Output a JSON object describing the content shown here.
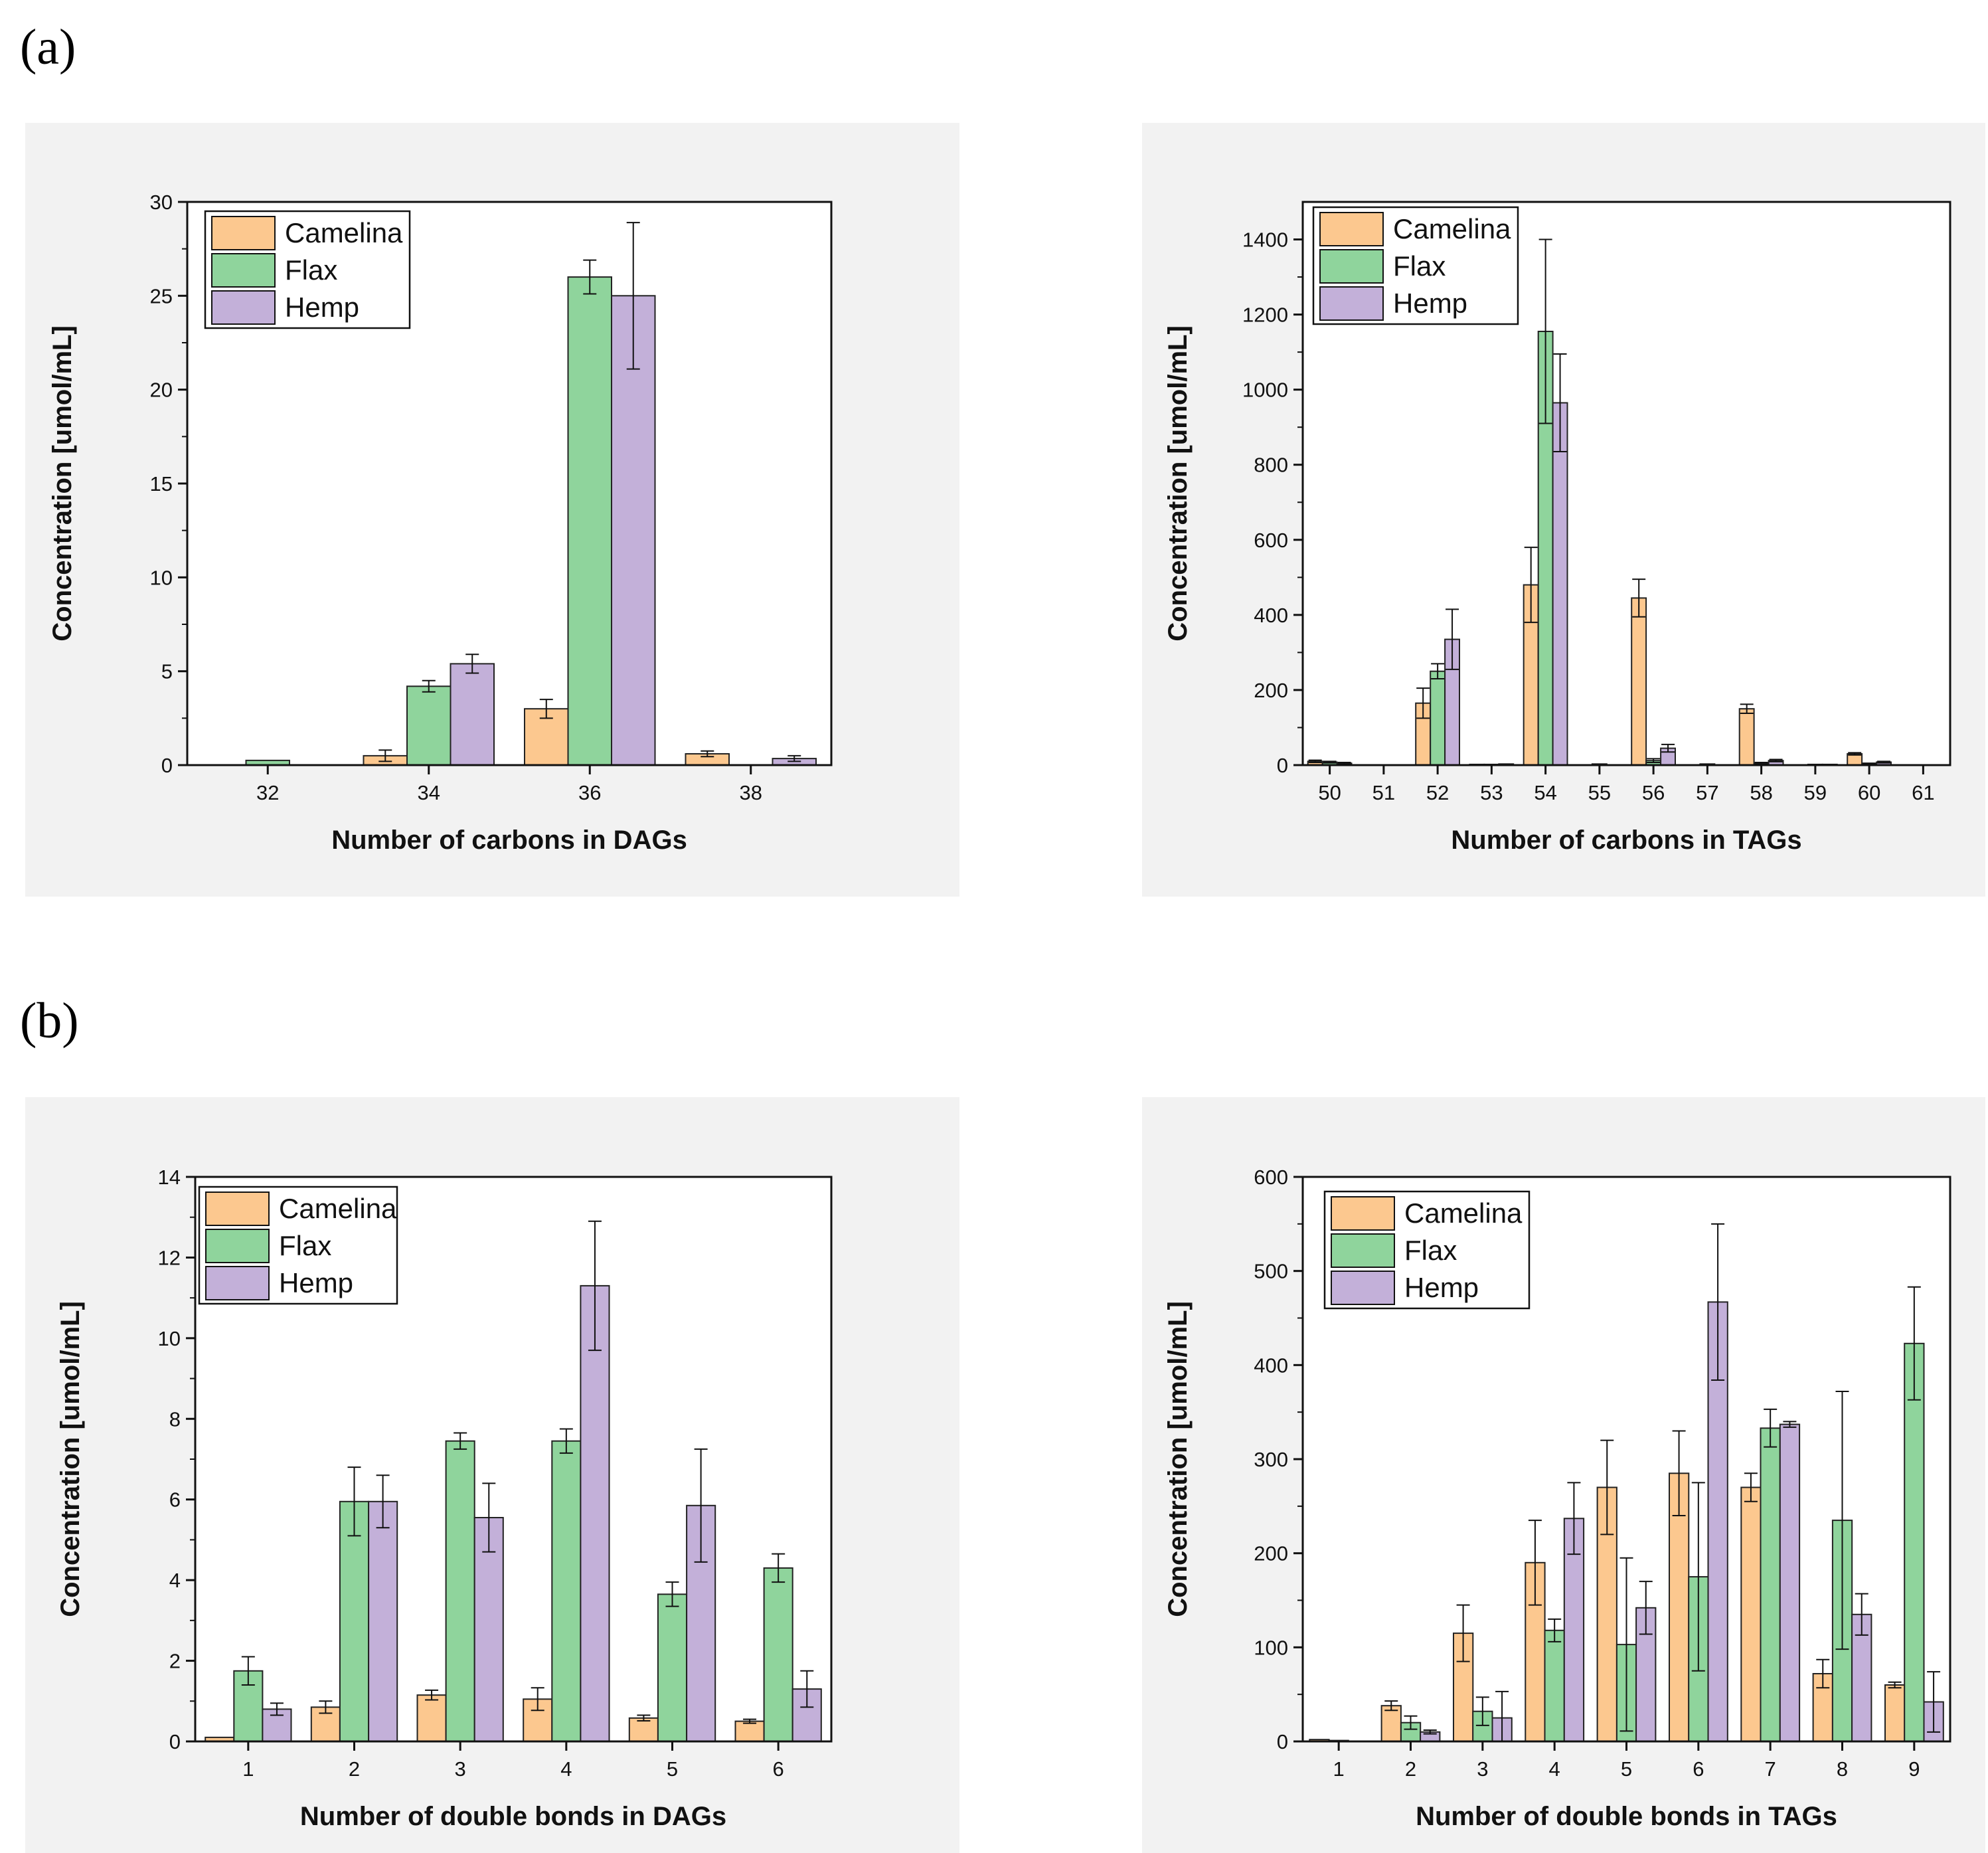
{
  "figure": {
    "label_a": "(a)",
    "label_b": "(b)"
  },
  "colors": {
    "Camelina": "#fcc88f",
    "Flax": "#8fd49c",
    "Hemp": "#c3b0d9",
    "stroke": "#222222",
    "shade": "#f2f2f2"
  },
  "chart_data": [
    {
      "id": "a1",
      "type": "bar",
      "title": "",
      "xlabel": "Number of carbons in DAGs",
      "ylabel": "Concentration [umol/mL]",
      "categories": [
        "32",
        "34",
        "36",
        "38"
      ],
      "ylim": [
        0,
        30
      ],
      "yticks": [
        0,
        5,
        10,
        15,
        20,
        25,
        30
      ],
      "legend": "top-left",
      "series": [
        {
          "name": "Camelina",
          "values": [
            0,
            0.5,
            3.0,
            0.6
          ],
          "errors": [
            0,
            0.3,
            0.5,
            0.15
          ]
        },
        {
          "name": "Flax",
          "values": [
            0.25,
            4.2,
            26.0,
            0
          ],
          "errors": [
            0,
            0.3,
            0.9,
            0
          ]
        },
        {
          "name": "Hemp",
          "values": [
            0,
            5.4,
            25.0,
            0.35
          ],
          "errors": [
            0,
            0.5,
            3.9,
            0.15
          ]
        }
      ]
    },
    {
      "id": "a2",
      "type": "bar",
      "title": "",
      "xlabel": "Number of carbons in TAGs",
      "ylabel": "Concentration [umol/mL]",
      "categories": [
        "50",
        "51",
        "52",
        "53",
        "54",
        "55",
        "56",
        "57",
        "58",
        "59",
        "60",
        "61"
      ],
      "ylim": [
        0,
        1500
      ],
      "yticks": [
        0,
        200,
        400,
        600,
        800,
        1000,
        1200,
        1400
      ],
      "legend": "top-left",
      "series": [
        {
          "name": "Camelina",
          "values": [
            10,
            0,
            165,
            2,
            480,
            0,
            445,
            0,
            150,
            0,
            30,
            0
          ],
          "errors": [
            3,
            0,
            40,
            0,
            100,
            0,
            50,
            0,
            12,
            0,
            3,
            0
          ]
        },
        {
          "name": "Flax",
          "values": [
            8,
            0,
            250,
            2,
            1155,
            3,
            12,
            3,
            5,
            2,
            4,
            0
          ],
          "errors": [
            2,
            0,
            20,
            0,
            245,
            0,
            5,
            0,
            2,
            0,
            1,
            0
          ]
        },
        {
          "name": "Hemp",
          "values": [
            5,
            0,
            335,
            3,
            965,
            0,
            45,
            0,
            12,
            2,
            8,
            0
          ],
          "errors": [
            2,
            0,
            80,
            0,
            130,
            0,
            10,
            0,
            3,
            0,
            2,
            0
          ]
        }
      ]
    },
    {
      "id": "b1",
      "type": "bar",
      "title": "",
      "xlabel": "Number of double bonds in DAGs",
      "ylabel": "Concentration [umol/mL]",
      "categories": [
        "1",
        "2",
        "3",
        "4",
        "5",
        "6"
      ],
      "ylim": [
        0,
        14
      ],
      "yticks": [
        0,
        2,
        4,
        6,
        8,
        10,
        12,
        14
      ],
      "legend": "top-left",
      "series": [
        {
          "name": "Camelina",
          "values": [
            0.1,
            0.85,
            1.15,
            1.05,
            0.58,
            0.5
          ],
          "errors": [
            0,
            0.15,
            0.12,
            0.28,
            0.07,
            0.05
          ]
        },
        {
          "name": "Flax",
          "values": [
            1.75,
            5.95,
            7.45,
            7.45,
            3.65,
            4.3
          ],
          "errors": [
            0.35,
            0.85,
            0.2,
            0.3,
            0.3,
            0.35
          ]
        },
        {
          "name": "Hemp",
          "values": [
            0.8,
            5.95,
            5.55,
            11.3,
            5.85,
            1.3
          ],
          "errors": [
            0.15,
            0.65,
            0.85,
            1.6,
            1.4,
            0.45
          ]
        }
      ]
    },
    {
      "id": "b2",
      "type": "bar",
      "title": "",
      "xlabel": "Number of double bonds in TAGs",
      "ylabel": "Concentration [umol/mL]",
      "categories": [
        "1",
        "2",
        "3",
        "4",
        "5",
        "6",
        "7",
        "8",
        "9"
      ],
      "ylim": [
        0,
        600
      ],
      "yticks": [
        0,
        100,
        200,
        300,
        400,
        500,
        600
      ],
      "legend": "top-left",
      "series": [
        {
          "name": "Camelina",
          "values": [
            2,
            38,
            115,
            190,
            270,
            285,
            270,
            72,
            60
          ],
          "errors": [
            0,
            5,
            30,
            45,
            50,
            45,
            15,
            15,
            3
          ]
        },
        {
          "name": "Flax",
          "values": [
            1,
            20,
            32,
            118,
            103,
            175,
            333,
            235,
            423
          ],
          "errors": [
            0,
            7,
            15,
            12,
            92,
            100,
            20,
            137,
            60
          ]
        },
        {
          "name": "Hemp",
          "values": [
            0,
            10,
            25,
            237,
            142,
            467,
            337,
            135,
            42
          ],
          "errors": [
            0,
            2,
            28,
            38,
            28,
            83,
            3,
            22,
            32
          ]
        }
      ]
    }
  ]
}
